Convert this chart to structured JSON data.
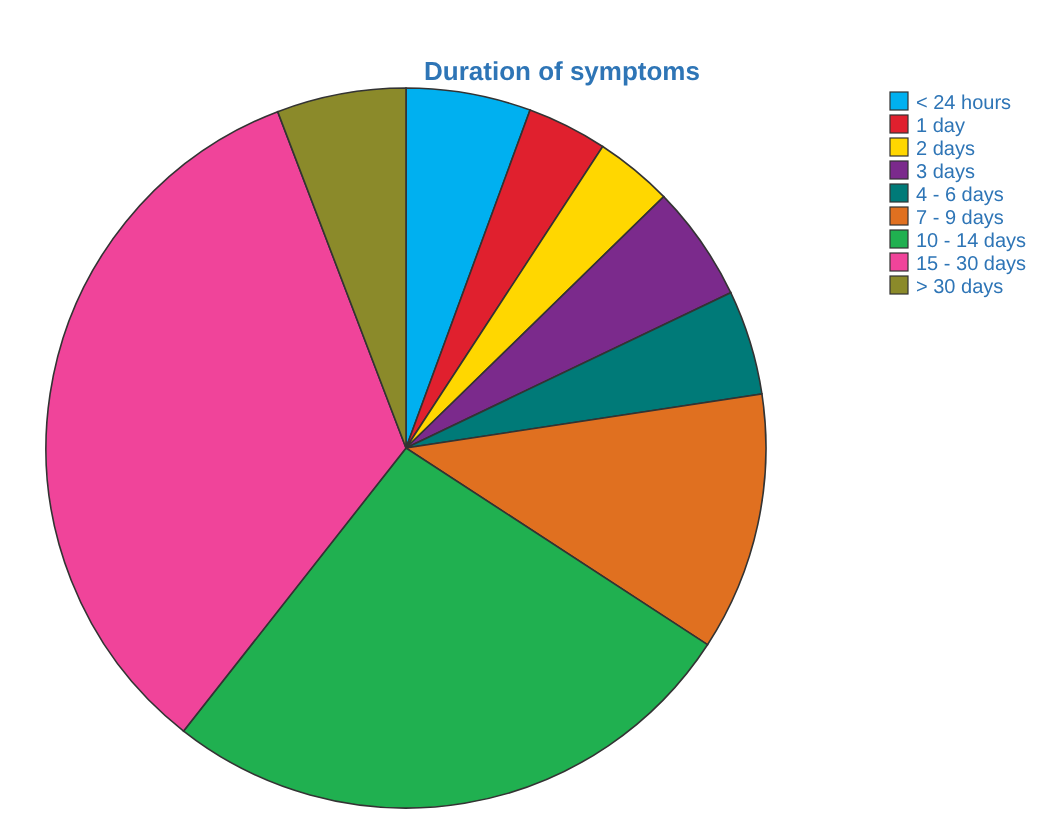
{
  "chart_data": {
    "type": "pie",
    "title": "Duration of symptoms",
    "categories": [
      "< 24 hours",
      "1 day",
      "2 days",
      "3 days",
      "4 - 6 days",
      "7 - 9 days",
      "10 - 14 days",
      "15 - 30 days",
      "> 30 days"
    ],
    "values": [
      5.6,
      3.6,
      3.5,
      5.2,
      4.7,
      11.6,
      26.4,
      33.6,
      5.8
    ],
    "colors": [
      "#00b0f0",
      "#e0202e",
      "#ffd700",
      "#7b2a8c",
      "#007a78",
      "#e07020",
      "#20b050",
      "#f0449a",
      "#8b8a2a"
    ],
    "legend": "top right"
  }
}
